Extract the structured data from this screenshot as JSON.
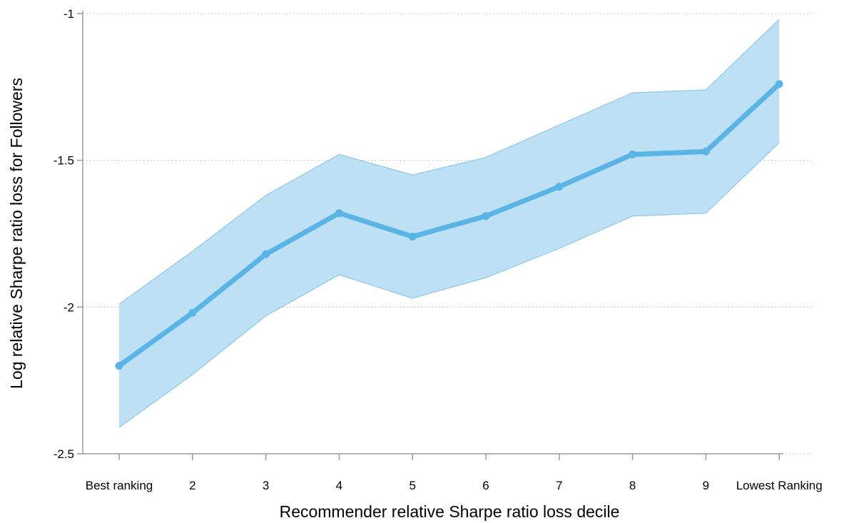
{
  "chart_data": {
    "type": "line",
    "title": "",
    "xlabel": "Recommender relative Sharpe ratio loss decile",
    "ylabel": "Log relative Sharpe ratio loss for Followers",
    "categories": [
      "Best ranking",
      "2",
      "3",
      "4",
      "5",
      "6",
      "7",
      "8",
      "9",
      "Lowest Ranking"
    ],
    "ylim": [
      -2.5,
      -1
    ],
    "yticks": [
      -1,
      -1.5,
      -2,
      -2.5
    ],
    "ytick_labels": [
      "-1",
      "-1.5",
      "-2",
      "-2.5"
    ],
    "grid": "horizontal dotted",
    "series": [
      {
        "values": [
          -2.2,
          -2.02,
          -1.82,
          -1.68,
          -1.76,
          -1.69,
          -1.59,
          -1.48,
          -1.47,
          -1.24
        ],
        "ci_upper": [
          -1.99,
          -1.81,
          -1.62,
          -1.48,
          -1.55,
          -1.49,
          -1.38,
          -1.27,
          -1.26,
          -1.02
        ],
        "ci_lower": [
          -2.41,
          -2.23,
          -2.03,
          -1.89,
          -1.97,
          -1.9,
          -1.8,
          -1.69,
          -1.68,
          -1.44
        ]
      }
    ],
    "colors": {
      "line": "#5ab4e6",
      "band_fill": "#bde0f5",
      "band_edge": "#8cc8ea",
      "axis": "#9a9a9a",
      "grid": "#b4b4b4"
    }
  }
}
